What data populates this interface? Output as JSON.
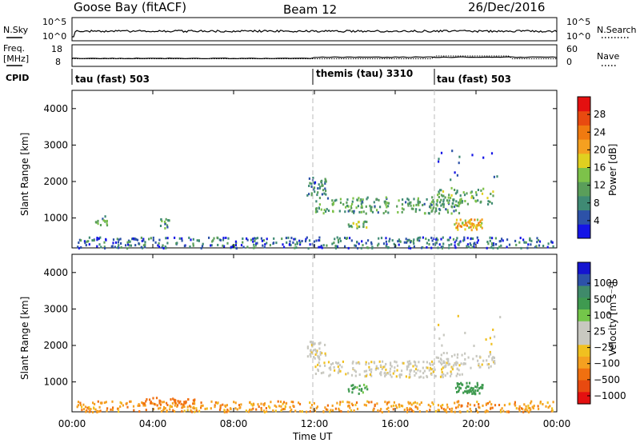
{
  "header": {
    "site": "Goose Bay (fitACF)",
    "beam": "Beam 12",
    "date": "26/Dec/2016"
  },
  "strip_nsky": {
    "left_label": "N.Sky",
    "left_ticks": [
      "10^5",
      "10^0"
    ],
    "right_ticks": [
      "10^5",
      "10^0"
    ],
    "right_label": "N.Search"
  },
  "strip_freq": {
    "left_label_1": "Freq.",
    "left_label_2": "[MHz]",
    "left_ticks": [
      "18",
      "8"
    ],
    "right_ticks": [
      "60",
      "0"
    ],
    "right_label": "Nave"
  },
  "cpid": {
    "label": "CPID",
    "segments": [
      {
        "name": "tau (fast) 503",
        "start_h": 0
      },
      {
        "name": "themis (tau) 3310",
        "start_h": 12
      },
      {
        "name": "tau (fast) 503",
        "start_h": 18
      }
    ]
  },
  "chart_data": [
    {
      "type": "heatmap",
      "panel": "power",
      "ylabel": "Slant Range [km]",
      "xlabel": "Time UT",
      "xlim_h": [
        0,
        24
      ],
      "ylim": [
        180,
        4500
      ],
      "yticks": [
        1000,
        2000,
        3000,
        4000
      ],
      "colorbar": {
        "label": "Power [dB]",
        "ticks": [
          "4",
          "8",
          "12",
          "16",
          "20",
          "24",
          "28"
        ],
        "colors": [
          "#1414e6",
          "#2d52a8",
          "#3f8a74",
          "#5a9e5a",
          "#7dc24a",
          "#e0d020",
          "#f5a020",
          "#f07a10",
          "#e84a10",
          "#e41010"
        ]
      },
      "regions": [
        {
          "t0": 12.0,
          "t1": 19.3,
          "r0": 1150,
          "r1": 1600,
          "v": 10,
          "n": 200
        },
        {
          "t0": 11.6,
          "t1": 12.6,
          "r0": 1650,
          "r1": 2150,
          "v": 7,
          "n": 40
        },
        {
          "t0": 18.0,
          "t1": 21.0,
          "r0": 1400,
          "r1": 1850,
          "v": 11,
          "n": 60
        },
        {
          "t0": 18.9,
          "t1": 20.3,
          "r0": 700,
          "r1": 1000,
          "v": 19,
          "n": 55
        },
        {
          "t0": 13.6,
          "t1": 14.6,
          "r0": 700,
          "r1": 950,
          "v": 12,
          "n": 20
        },
        {
          "t0": 0.2,
          "t1": 23.8,
          "r0": 200,
          "r1": 500,
          "v": 6,
          "n": 420
        },
        {
          "t0": 1.1,
          "t1": 1.7,
          "r0": 800,
          "r1": 1100,
          "v": 9,
          "n": 14
        },
        {
          "t0": 4.2,
          "t1": 4.8,
          "r0": 750,
          "r1": 1000,
          "v": 9,
          "n": 14
        },
        {
          "t0": 17.8,
          "t1": 21.2,
          "r0": 2000,
          "r1": 2900,
          "v": 5,
          "n": 14
        }
      ]
    },
    {
      "type": "heatmap",
      "panel": "velocity",
      "ylabel": "Slant Range [km]",
      "xlabel": "Time UT",
      "xlim_h": [
        0,
        24
      ],
      "ylim": [
        180,
        4500
      ],
      "yticks": [
        1000,
        2000,
        3000,
        4000
      ],
      "xticks": [
        "00:00",
        "04:00",
        "08:00",
        "12:00",
        "16:00",
        "20:00",
        "00:00"
      ],
      "colorbar": {
        "label": "Velocity [m s⁻¹]",
        "ticks": [
          "1000",
          "500",
          "100",
          "25",
          "−25",
          "−100",
          "−500",
          "−1000"
        ],
        "colors": [
          "#1414d0",
          "#2d52a8",
          "#3f8a6a",
          "#3f9a50",
          "#74c64a",
          "#c8c8c0",
          "#c8c8c0",
          "#f0c020",
          "#f5a020",
          "#f07010",
          "#e84a10",
          "#e41010"
        ]
      },
      "regions": [
        {
          "t0": 12.0,
          "t1": 19.3,
          "r0": 1150,
          "r1": 1600,
          "v": 0,
          "n": 200
        },
        {
          "t0": 11.6,
          "t1": 12.6,
          "r0": 1650,
          "r1": 2150,
          "v": 0,
          "n": 40
        },
        {
          "t0": 18.0,
          "t1": 21.0,
          "r0": 1400,
          "r1": 1850,
          "v": 0,
          "n": 60
        },
        {
          "t0": 18.9,
          "t1": 20.3,
          "r0": 700,
          "r1": 1000,
          "v": 150,
          "n": 55
        },
        {
          "t0": 13.6,
          "t1": 14.6,
          "r0": 700,
          "r1": 950,
          "v": 120,
          "n": 20
        },
        {
          "t0": 0.2,
          "t1": 23.8,
          "r0": 200,
          "r1": 500,
          "v": -80,
          "n": 420
        },
        {
          "t0": 3.5,
          "t1": 6.5,
          "r0": 380,
          "r1": 600,
          "v": -150,
          "n": 40
        },
        {
          "t0": 17.8,
          "t1": 21.2,
          "r0": 2000,
          "r1": 2900,
          "v": 0,
          "n": 14
        }
      ]
    }
  ]
}
